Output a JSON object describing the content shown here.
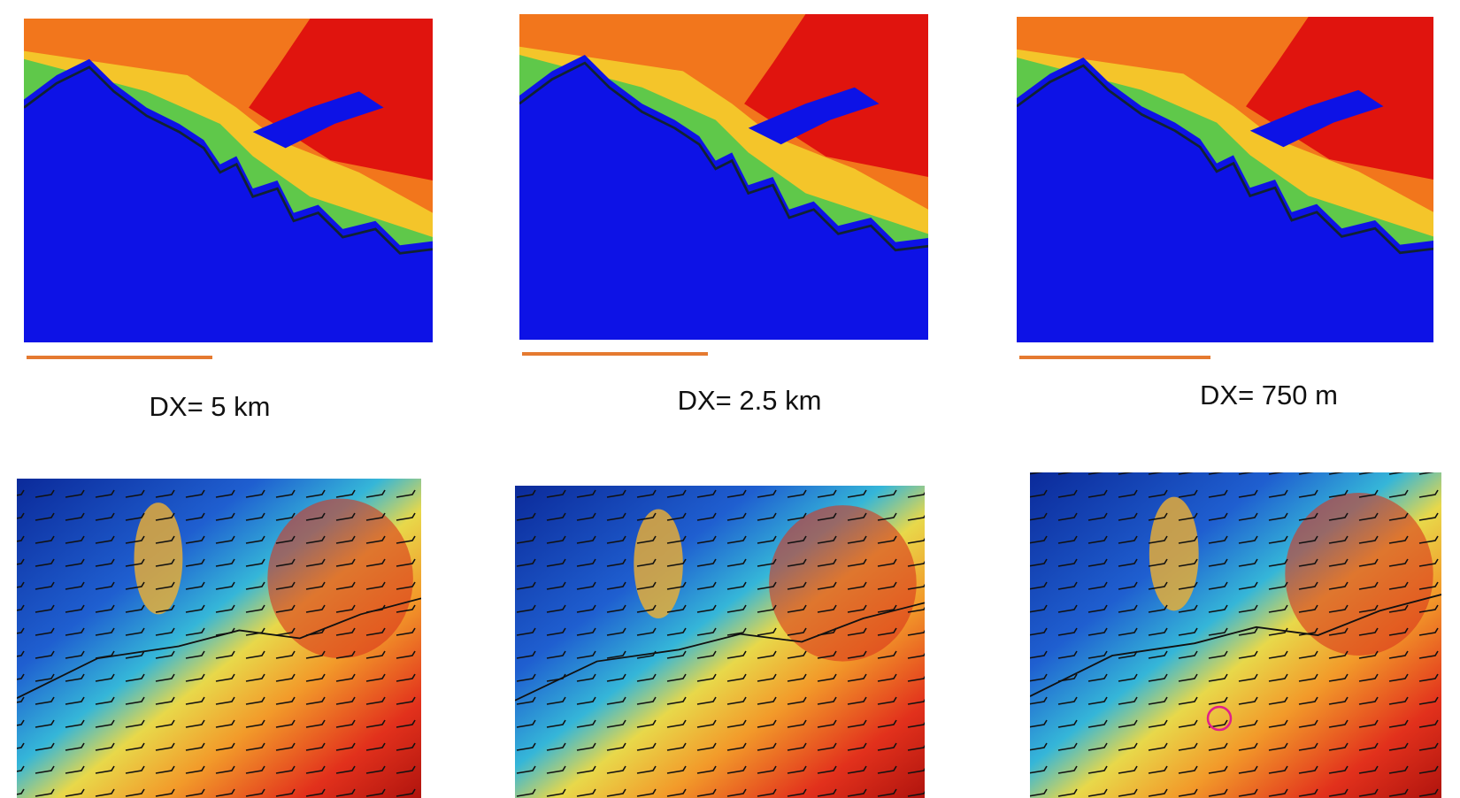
{
  "panels": [
    {
      "label": "DX= 5 km"
    },
    {
      "label": "DX= 2.5 km"
    },
    {
      "label": "DX= 750 m"
    }
  ]
}
